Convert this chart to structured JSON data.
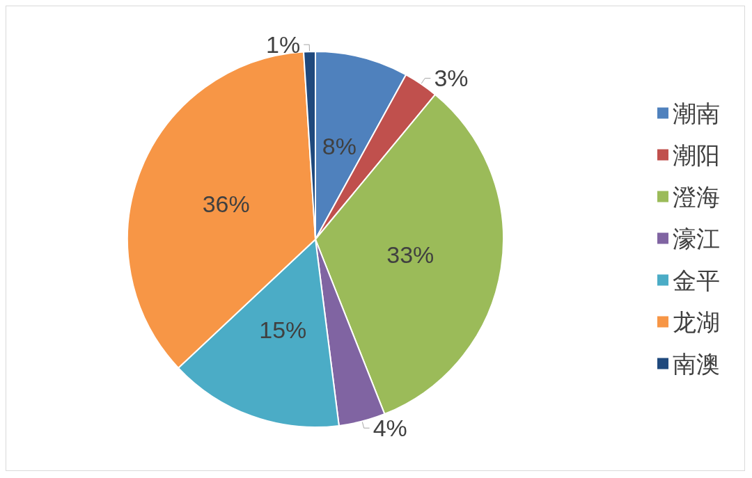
{
  "chart_data": {
    "type": "pie",
    "categories": [
      "潮南",
      "潮阳",
      "澄海",
      "濠江",
      "金平",
      "龙湖",
      "南澳"
    ],
    "values": [
      8,
      3,
      33,
      4,
      15,
      36,
      1
    ],
    "colors": [
      "#4f81bd",
      "#c0504d",
      "#9bbb59",
      "#8064a2",
      "#4bacc6",
      "#f79646",
      "#1f497d"
    ],
    "value_labels": [
      "8%",
      "3%",
      "33%",
      "4%",
      "15%",
      "36%",
      "1%"
    ],
    "legend": "right"
  }
}
